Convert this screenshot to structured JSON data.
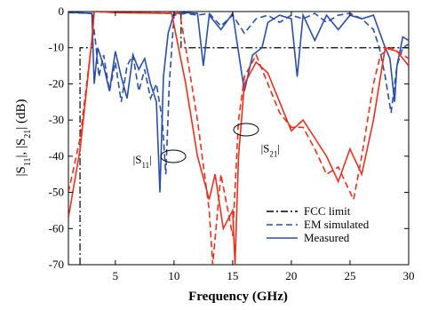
{
  "chart_data": {
    "type": "line",
    "xlabel": "Frequency (GHz)",
    "ylabel": [
      "|S",
      "11",
      "|, |S",
      "21",
      "| (dB)"
    ],
    "xlim": [
      1,
      30
    ],
    "ylim": [
      -70,
      0
    ],
    "xticks": [
      5,
      10,
      15,
      20,
      25,
      30
    ],
    "yticks": [
      0,
      -10,
      -20,
      -30,
      -40,
      -50,
      -60,
      -70
    ],
    "legend": "lower right",
    "annotations": [
      {
        "prefix": "|S",
        "sub": "11",
        "suffix": "|",
        "x": 6.5,
        "y": -41
      },
      {
        "prefix": "|S",
        "sub": "21",
        "suffix": "|",
        "x": 17.4,
        "y": -38
      }
    ],
    "series": [
      {
        "name": "FCC limit",
        "color": "#000000",
        "dash": "dashdot",
        "x": [
          1.99,
          1.99,
          3.1,
          3.1,
          10.6,
          10.6,
          30
        ],
        "values": [
          -70,
          -10,
          -10,
          0,
          0,
          -10,
          -10
        ]
      },
      {
        "name": "EM simulated",
        "color": "#2a4fa8",
        "dash": "dashed",
        "x": [
          1,
          3,
          3.3,
          3.6,
          4,
          4.5,
          5,
          5.5,
          6,
          6.5,
          7,
          7.5,
          8,
          8.5,
          9,
          9.3,
          9.6,
          10,
          11,
          12,
          13,
          14,
          15,
          16,
          17,
          18,
          19,
          20,
          21,
          22,
          23,
          24,
          25,
          26,
          27,
          27.5,
          28,
          28.5,
          29,
          29.5,
          30
        ],
        "values": [
          -0.3,
          -0.5,
          -8,
          -18,
          -12,
          -22,
          -14,
          -25,
          -15,
          -12,
          -22,
          -16,
          -24,
          -20,
          -30,
          -45,
          -20,
          -1,
          -0.5,
          -1,
          -0.5,
          -4,
          -1,
          -6,
          -2,
          -1,
          -3,
          -1,
          -2,
          -0.5,
          -3,
          -1,
          -0.5,
          -2,
          -5,
          -10,
          -18,
          -28,
          -15,
          -10,
          -9
        ]
      },
      {
        "name": "Measured",
        "color": "#2a4fa8",
        "dash": "solid",
        "x": [
          1,
          3,
          3.2,
          3.5,
          4,
          4.5,
          5,
          5.5,
          6,
          6.5,
          7,
          7.5,
          8,
          8.5,
          8.8,
          9.1,
          9.5,
          10,
          11,
          12,
          12.5,
          13,
          14,
          15,
          16,
          16.7,
          17.5,
          18,
          19,
          20,
          20.5,
          21,
          22,
          23,
          24,
          25,
          26,
          27,
          28,
          28.4,
          28.8,
          29,
          29.5,
          30
        ],
        "values": [
          -0.2,
          -0.5,
          -20,
          -10,
          -15,
          -22,
          -11,
          -18,
          -24,
          -12,
          -16,
          -13,
          -20,
          -25,
          -50,
          -18,
          -6,
          -0.5,
          -0.3,
          -0.5,
          -15,
          -1,
          -5,
          -0.5,
          -22,
          -12,
          -10,
          -3,
          -1,
          -2,
          -18,
          -1,
          -8,
          -1,
          -5,
          -1,
          -2,
          -1,
          -10,
          -13,
          -25,
          -15,
          -7,
          -8
        ]
      },
      {
        "color": "#e8301e",
        "dash": "dashed",
        "x": [
          1,
          2,
          3,
          3.2,
          5,
          10.5,
          11,
          12,
          13,
          13.3,
          14,
          15,
          15.5,
          16,
          17,
          18,
          19,
          20,
          21,
          22,
          23,
          24,
          25.3,
          26,
          27,
          27.6,
          28.5,
          29,
          30
        ],
        "values": [
          -50,
          -35,
          -8,
          0,
          -0.3,
          -0.5,
          -10,
          -30,
          -55,
          -70,
          -45,
          -62,
          -30,
          -18,
          -12,
          -20,
          -28,
          -32,
          -32,
          -38,
          -45,
          -43,
          -52,
          -40,
          -20,
          -12,
          -10,
          -11,
          -13
        ]
      },
      {
        "color": "#e8301e",
        "dash": "solid",
        "x": [
          1,
          2,
          3,
          3.2,
          5,
          9.8,
          11,
          12,
          13,
          13.5,
          14.2,
          15,
          15.2,
          15.5,
          16,
          17,
          18,
          19,
          20,
          21,
          22,
          23,
          24,
          25,
          26,
          27,
          27.5,
          28,
          29,
          30
        ],
        "values": [
          -57,
          -38,
          -8,
          0,
          -0.3,
          -0.5,
          -20,
          -40,
          -52,
          -45,
          -60,
          -55,
          -70,
          -40,
          -20,
          -14,
          -17,
          -25,
          -33,
          -30,
          -35,
          -40,
          -47,
          -38,
          -45,
          -30,
          -20,
          -10,
          -11,
          -15
        ]
      }
    ]
  }
}
